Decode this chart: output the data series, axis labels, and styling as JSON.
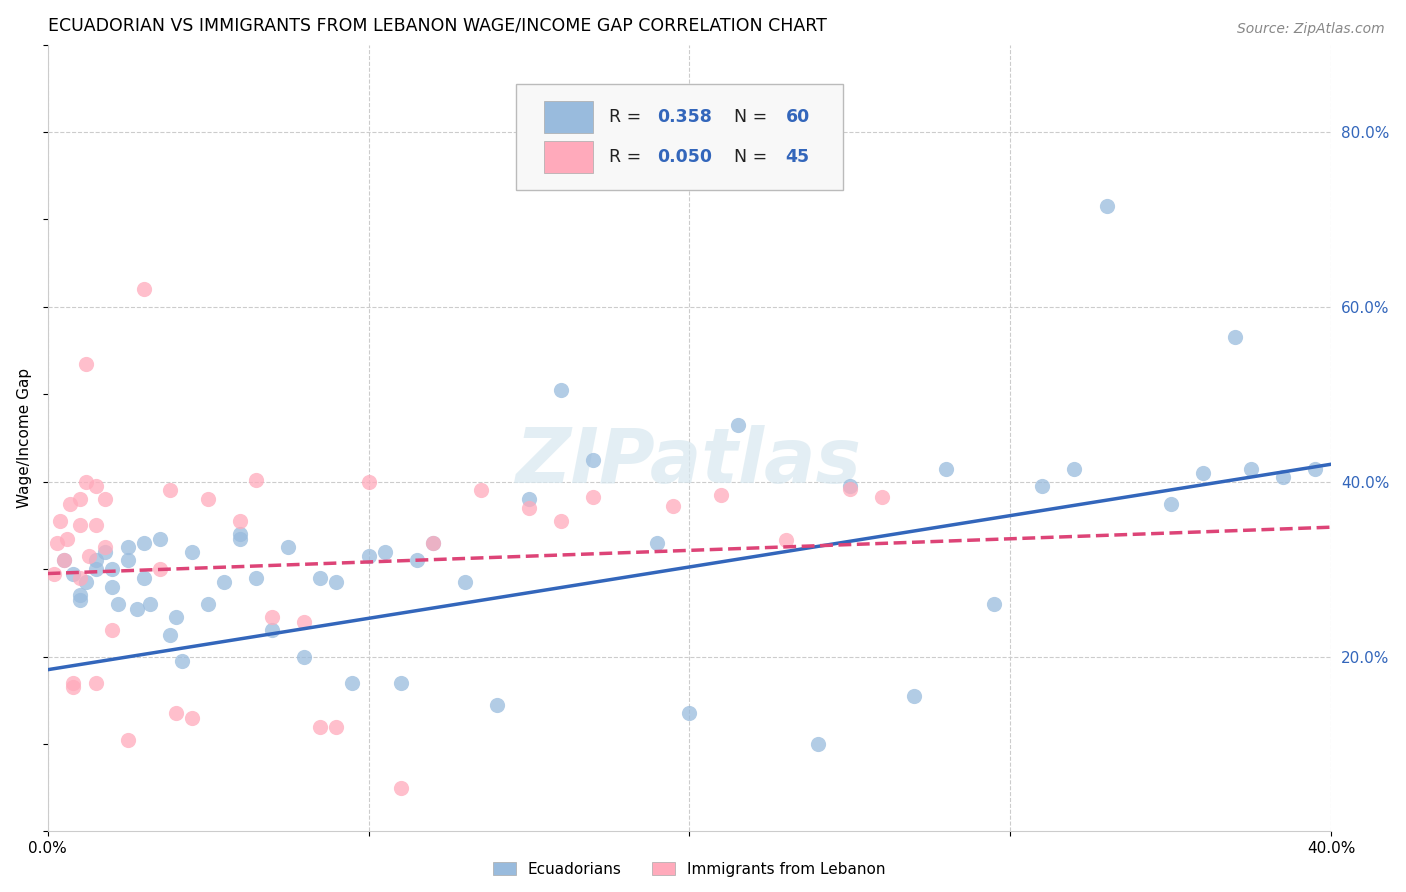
{
  "title": "ECUADORIAN VS IMMIGRANTS FROM LEBANON WAGE/INCOME GAP CORRELATION CHART",
  "source": "Source: ZipAtlas.com",
  "ylabel": "Wage/Income Gap",
  "watermark": "ZIPatlas",
  "xlim": [
    0.0,
    0.4
  ],
  "ylim": [
    0.0,
    0.9
  ],
  "x_ticks": [
    0.0,
    0.1,
    0.2,
    0.3,
    0.4
  ],
  "x_tick_labels": [
    "0.0%",
    "",
    "",
    "",
    "40.0%"
  ],
  "y_ticks_right": [
    0.2,
    0.4,
    0.6,
    0.8
  ],
  "y_tick_labels_right": [
    "20.0%",
    "40.0%",
    "60.0%",
    "80.0%"
  ],
  "grid_color": "#cccccc",
  "background_color": "#ffffff",
  "blue_color": "#99bbdd",
  "pink_color": "#ffaabb",
  "blue_line_color": "#3366bb",
  "pink_line_color": "#dd4477",
  "legend_R1": "0.358",
  "legend_N1": "60",
  "legend_R2": "0.050",
  "legend_N2": "45",
  "blue_scatter_x": [
    0.005,
    0.008,
    0.01,
    0.01,
    0.012,
    0.015,
    0.015,
    0.018,
    0.02,
    0.02,
    0.022,
    0.025,
    0.025,
    0.028,
    0.03,
    0.03,
    0.032,
    0.035,
    0.038,
    0.04,
    0.042,
    0.045,
    0.05,
    0.055,
    0.06,
    0.06,
    0.065,
    0.07,
    0.075,
    0.08,
    0.085,
    0.09,
    0.095,
    0.1,
    0.105,
    0.11,
    0.115,
    0.12,
    0.13,
    0.14,
    0.15,
    0.16,
    0.17,
    0.19,
    0.2,
    0.215,
    0.24,
    0.25,
    0.27,
    0.28,
    0.295,
    0.31,
    0.32,
    0.33,
    0.35,
    0.36,
    0.37,
    0.375,
    0.385,
    0.395
  ],
  "blue_scatter_y": [
    0.31,
    0.295,
    0.27,
    0.265,
    0.285,
    0.3,
    0.31,
    0.32,
    0.3,
    0.28,
    0.26,
    0.31,
    0.325,
    0.255,
    0.33,
    0.29,
    0.26,
    0.335,
    0.225,
    0.245,
    0.195,
    0.32,
    0.26,
    0.285,
    0.34,
    0.335,
    0.29,
    0.23,
    0.325,
    0.2,
    0.29,
    0.285,
    0.17,
    0.315,
    0.32,
    0.17,
    0.31,
    0.33,
    0.285,
    0.145,
    0.38,
    0.505,
    0.425,
    0.33,
    0.135,
    0.465,
    0.1,
    0.395,
    0.155,
    0.415,
    0.26,
    0.395,
    0.415,
    0.715,
    0.375,
    0.41,
    0.565,
    0.415,
    0.405,
    0.415
  ],
  "pink_scatter_x": [
    0.002,
    0.003,
    0.004,
    0.005,
    0.006,
    0.007,
    0.008,
    0.008,
    0.01,
    0.01,
    0.01,
    0.012,
    0.012,
    0.013,
    0.015,
    0.015,
    0.015,
    0.018,
    0.018,
    0.02,
    0.025,
    0.03,
    0.035,
    0.038,
    0.04,
    0.045,
    0.05,
    0.06,
    0.065,
    0.07,
    0.08,
    0.085,
    0.09,
    0.1,
    0.11,
    0.12,
    0.135,
    0.15,
    0.16,
    0.17,
    0.195,
    0.21,
    0.23,
    0.25,
    0.26
  ],
  "pink_scatter_y": [
    0.295,
    0.33,
    0.355,
    0.31,
    0.335,
    0.375,
    0.165,
    0.17,
    0.29,
    0.35,
    0.38,
    0.4,
    0.535,
    0.315,
    0.35,
    0.395,
    0.17,
    0.325,
    0.38,
    0.23,
    0.105,
    0.62,
    0.3,
    0.39,
    0.135,
    0.13,
    0.38,
    0.355,
    0.402,
    0.245,
    0.24,
    0.12,
    0.12,
    0.4,
    0.05,
    0.33,
    0.39,
    0.37,
    0.355,
    0.382,
    0.372,
    0.385,
    0.333,
    0.392,
    0.382
  ],
  "blue_line_x": [
    0.0,
    0.4
  ],
  "blue_line_y": [
    0.185,
    0.42
  ],
  "pink_line_x": [
    0.0,
    0.4
  ],
  "pink_line_y": [
    0.295,
    0.348
  ]
}
